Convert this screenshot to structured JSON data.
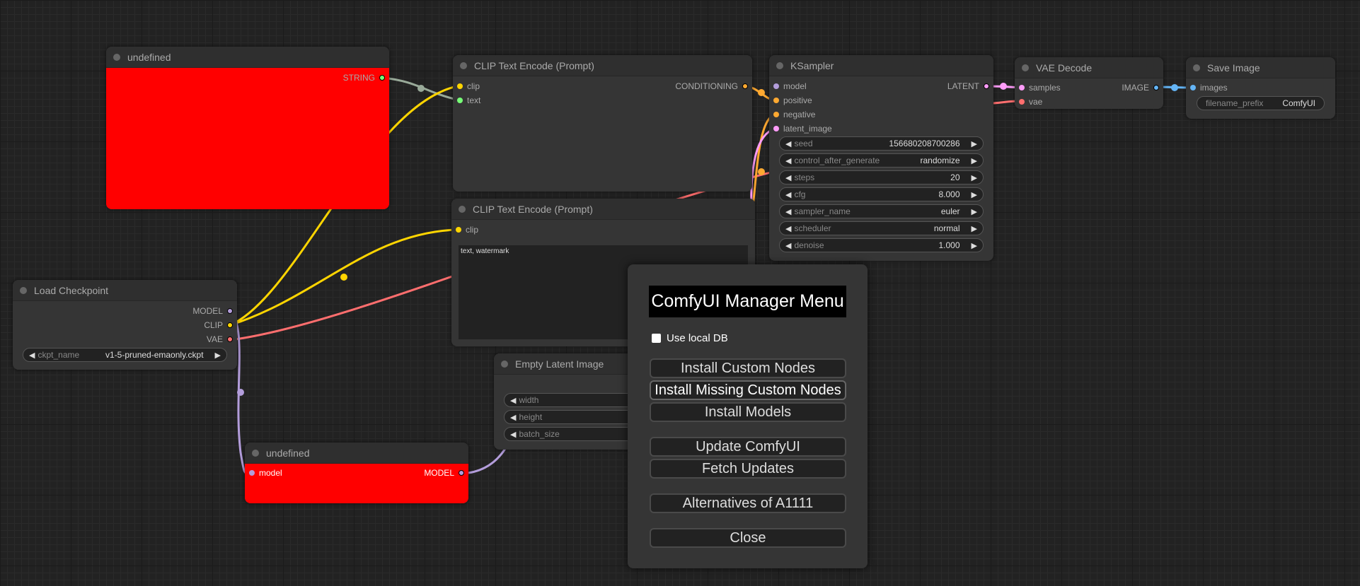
{
  "nodes": {
    "primitive": {
      "title": "undefined",
      "out": "STRING"
    },
    "clip1": {
      "title": "CLIP Text Encode (Prompt)",
      "in": [
        "clip",
        "text"
      ],
      "out": "CONDITIONING"
    },
    "clip2": {
      "title": "CLIP Text Encode (Prompt)",
      "in": "clip",
      "text": "text, watermark"
    },
    "ksampler": {
      "title": "KSampler",
      "in": [
        "model",
        "positive",
        "negative",
        "latent_image"
      ],
      "out": "LATENT",
      "widgets": [
        {
          "n": "seed",
          "v": "156680208700286"
        },
        {
          "n": "control_after_generate",
          "v": "randomize"
        },
        {
          "n": "steps",
          "v": "20"
        },
        {
          "n": "cfg",
          "v": "8.000"
        },
        {
          "n": "sampler_name",
          "v": "euler"
        },
        {
          "n": "scheduler",
          "v": "normal"
        },
        {
          "n": "denoise",
          "v": "1.000"
        }
      ]
    },
    "vae": {
      "title": "VAE Decode",
      "in": [
        "samples",
        "vae"
      ],
      "out": "IMAGE"
    },
    "save": {
      "title": "Save Image",
      "in": "images",
      "widget": {
        "n": "filename_prefix",
        "v": "ComfyUI"
      }
    },
    "ckpt": {
      "title": "Load Checkpoint",
      "out": [
        "MODEL",
        "CLIP",
        "VAE"
      ],
      "widget": {
        "n": "ckpt_name",
        "v": "v1-5-pruned-emaonly.ckpt"
      }
    },
    "latent": {
      "title": "Empty Latent Image",
      "widgets": [
        "width",
        "height",
        "batch_size"
      ]
    },
    "bottom": {
      "title": "undefined",
      "in": "model",
      "out": "MODEL"
    }
  },
  "dialog": {
    "title": "ComfyUI Manager Menu",
    "checkbox": "Use local DB",
    "checked": false,
    "buttons": [
      "Install Custom Nodes",
      "Install Missing Custom Nodes",
      "Install Models",
      "Update ComfyUI",
      "Fetch Updates",
      "Alternatives of A1111",
      "Close"
    ]
  },
  "colors": {
    "clip": "#ffd500",
    "model": "#b39ddb",
    "vae": "#ff6e6e",
    "conditioning": "#ffa931",
    "latent": "#ff9cf9",
    "image": "#64b5f6",
    "string": "#7f7"
  }
}
